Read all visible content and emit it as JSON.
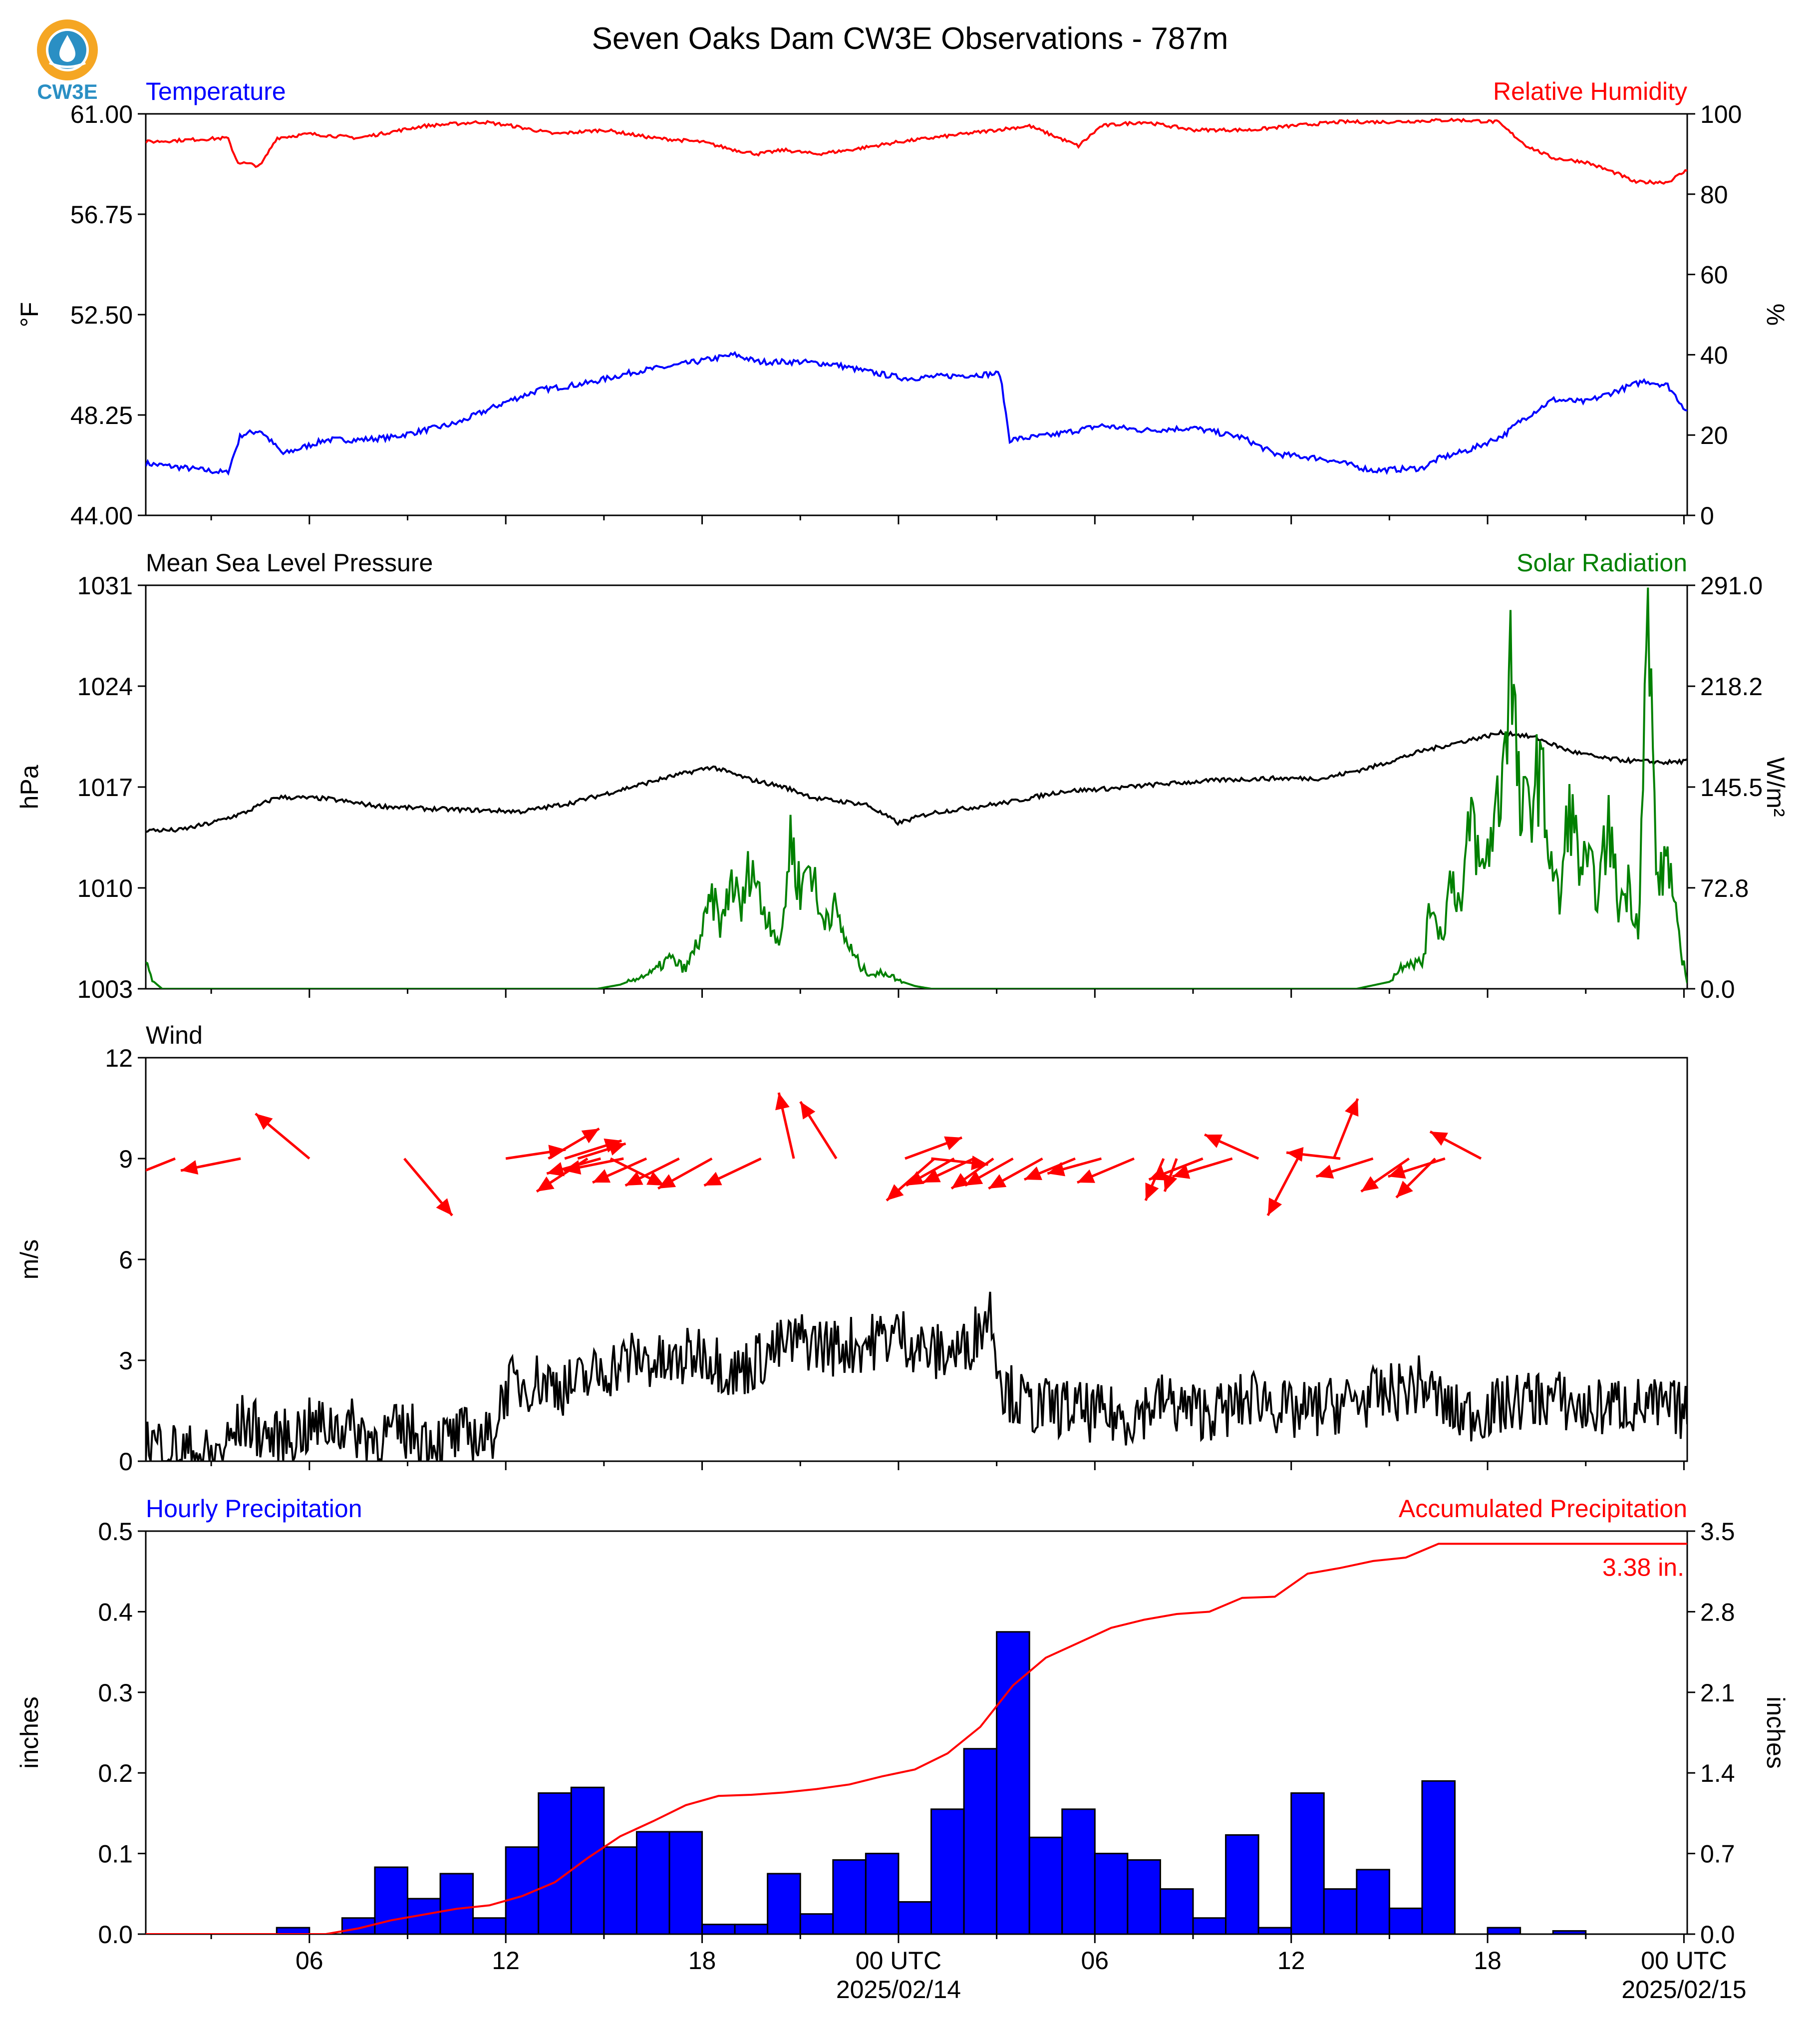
{
  "title": "Seven Oaks Dam CW3E Observations - 787m",
  "logo": {
    "text": "CW3E",
    "colors": {
      "ring": "#f5a623",
      "drop": "#2a8fc4",
      "text": "#2a8fc4"
    }
  },
  "colors": {
    "blue": "#0000ff",
    "red": "#ff0000",
    "green": "#008000",
    "black": "#000000"
  },
  "x_axis": {
    "ticks": [
      "06",
      "12",
      "18",
      "00 UTC",
      "06",
      "12",
      "18",
      "00 UTC"
    ],
    "dates": [
      "2025/02/14",
      "2025/02/15"
    ],
    "range_hours": [
      1,
      48.1
    ]
  },
  "chart_data": [
    {
      "type": "line",
      "left_title": "Temperature",
      "right_title": "Relative Humidity",
      "ylabel": "°F",
      "ylabel_right": "%",
      "ylim": [
        44.0,
        61.0
      ],
      "ylim_right": [
        0,
        100
      ],
      "yticks": [
        "44.00",
        "48.25",
        "52.50",
        "56.75",
        "61.00"
      ],
      "yticks_right": [
        "0",
        "20",
        "40",
        "60",
        "80",
        "100"
      ],
      "series": [
        {
          "axis": "left",
          "color": "#0000ff",
          "x": [
            1,
            3.5,
            3.9,
            4.5,
            5.2,
            6.5,
            7.5,
            8.5,
            10.5,
            12,
            13,
            14.5,
            16,
            17,
            18.2,
            19,
            19.7,
            21,
            22,
            23,
            24.2,
            25.5,
            27.1,
            27.4,
            28.7,
            30.2,
            31.5,
            33,
            34.5,
            35.5,
            37,
            38.5,
            40,
            40.5,
            41.5,
            42.5,
            43,
            44,
            45,
            46,
            46.8,
            47.5,
            48.1
          ],
          "values": [
            46.2,
            45.8,
            47.4,
            47.6,
            46.6,
            47.2,
            47.2,
            47.3,
            47.9,
            48.8,
            49.3,
            49.6,
            50.1,
            50.3,
            50.6,
            50.8,
            50.5,
            50.5,
            50.4,
            50.1,
            49.8,
            49.9,
            50.0,
            47.2,
            47.4,
            47.8,
            47.6,
            47.7,
            47.3,
            46.6,
            46.4,
            45.9,
            46.0,
            46.4,
            46.8,
            47.4,
            48.0,
            48.9,
            48.8,
            49.3,
            49.7,
            49.5,
            48.4
          ]
        },
        {
          "axis": "right",
          "color": "#ff0000",
          "x": [
            1,
            3.5,
            3.8,
            4.5,
            5,
            6,
            7.5,
            9.5,
            11.3,
            12.2,
            13.5,
            15,
            16.5,
            18,
            19,
            19.7,
            20.5,
            21.5,
            22.5,
            24,
            26,
            28,
            29.5,
            30.2,
            31.5,
            33,
            34.8,
            36,
            37.5,
            39,
            41,
            42.3,
            43.2,
            44,
            45,
            46,
            46.5,
            47.5,
            48.1
          ],
          "values": [
            93,
            94,
            88,
            87,
            94,
            95,
            94,
            97,
            98,
            97,
            95,
            96,
            94,
            93,
            91,
            90,
            91,
            90,
            91,
            93,
            95,
            97,
            92,
            97,
            98,
            96,
            96,
            97,
            98,
            98,
            98.5,
            98,
            92,
            89,
            88,
            85,
            83,
            83,
            86
          ]
        }
      ]
    },
    {
      "type": "line",
      "left_title": "Mean Sea Level Pressure",
      "right_title": "Solar Radiation",
      "ylabel": "hPa",
      "ylabel_right": "W/m²",
      "ylim": [
        1003,
        1031
      ],
      "ylim_right": [
        0.0,
        291.0
      ],
      "yticks": [
        "1003",
        "1010",
        "1017",
        "1024",
        "1031"
      ],
      "yticks_right": [
        "0.0",
        "72.8",
        "145.5",
        "218.2",
        "291.0"
      ],
      "series": [
        {
          "axis": "left",
          "color": "#000000",
          "x": [
            1,
            2,
            3,
            4,
            5,
            6.5,
            8,
            9.5,
            11,
            12.5,
            14,
            15.5,
            17,
            18.3,
            19.5,
            20.5,
            21.5,
            23,
            24,
            25,
            26,
            27.5,
            29,
            30.5,
            32,
            34,
            35.5,
            37,
            38.5,
            40,
            41.5,
            42.5,
            43.5,
            44.5,
            45.5,
            46.5,
            47.5,
            48.1
          ],
          "values": [
            1014.0,
            1014.0,
            1014.5,
            1015.2,
            1016.3,
            1016.2,
            1015.7,
            1015.5,
            1015.4,
            1015.3,
            1015.9,
            1016.8,
            1017.7,
            1018.4,
            1017.5,
            1017.0,
            1016.2,
            1015.8,
            1014.5,
            1015.2,
            1015.5,
            1016.0,
            1016.7,
            1016.9,
            1017.2,
            1017.5,
            1017.6,
            1017.6,
            1018.4,
            1019.5,
            1020.3,
            1020.8,
            1020.4,
            1019.5,
            1019.0,
            1018.8,
            1018.7,
            1018.8
          ],
          "raw": true
        },
        {
          "axis": "right",
          "color": "#008000",
          "x": [
            1,
            1.2,
            1.5,
            14.8,
            15.5,
            16.5,
            17.0,
            17.5,
            17.8,
            18.0,
            18.3,
            18.6,
            18.9,
            19.2,
            19.5,
            19.8,
            20.1,
            20.4,
            20.7,
            21.0,
            21.3,
            21.6,
            22.0,
            22.3,
            22.6,
            22.9,
            23.3,
            23.6,
            24.0,
            24.5,
            25,
            29,
            38,
            39.0,
            39.5,
            40.0,
            40.3,
            40.6,
            40.9,
            41.2,
            41.5,
            41.8,
            42.1,
            42.4,
            42.7,
            43.0,
            43.3,
            43.6,
            43.9,
            44.2,
            44.5,
            44.8,
            45.1,
            45.4,
            45.7,
            46.0,
            46.3,
            46.6,
            46.9,
            47.2,
            47.5,
            47.8,
            48.1
          ],
          "values": [
            18,
            6,
            0,
            0,
            3,
            12,
            22,
            14,
            30,
            40,
            65,
            45,
            80,
            55,
            95,
            60,
            50,
            30,
            110,
            70,
            95,
            50,
            60,
            40,
            25,
            14,
            10,
            12,
            6,
            2,
            0,
            0,
            0,
            5,
            20,
            18,
            65,
            35,
            85,
            55,
            130,
            80,
            110,
            145,
            240,
            120,
            135,
            160,
            100,
            60,
            135,
            90,
            85,
            70,
            120,
            60,
            75,
            45,
            265,
            70,
            100,
            40,
            5
          ],
          "raw": true
        }
      ]
    },
    {
      "type": "line",
      "left_title": "Wind",
      "ylabel": "m/s",
      "ylim": [
        0,
        12
      ],
      "yticks": [
        "0",
        "3",
        "6",
        "9",
        "12"
      ],
      "series": [
        {
          "axis": "left",
          "color": "#000000",
          "name_hidden": true,
          "x": [
            1,
            2,
            3,
            3.5,
            4,
            5,
            6,
            7,
            8,
            9,
            10,
            11,
            11.5,
            12,
            13,
            14,
            15,
            16,
            17,
            18,
            19,
            20,
            21,
            22,
            23,
            24,
            25,
            26,
            26.8,
            27.2,
            28,
            29,
            30,
            31,
            32,
            33,
            34,
            35,
            36,
            37,
            38,
            39,
            40,
            41,
            42,
            43,
            44,
            45,
            46,
            47,
            48.1
          ],
          "values": [
            0.6,
            0.3,
            0.1,
            0.5,
            1.2,
            0.6,
            1.0,
            1.1,
            0.7,
            0.9,
            0.6,
            0.8,
            0.6,
            2.2,
            2.4,
            2.2,
            2.7,
            3.1,
            2.8,
            3.3,
            2.6,
            3.2,
            3.6,
            3.4,
            3.5,
            3.8,
            3.2,
            3.3,
            4.5,
            2.2,
            1.6,
            1.6,
            1.4,
            1.3,
            1.8,
            1.5,
            1.5,
            2.0,
            1.4,
            1.6,
            1.8,
            2.0,
            2.3,
            1.4,
            1.5,
            1.8,
            1.9,
            1.5,
            1.7,
            1.6,
            1.5
          ]
        }
      ],
      "arrows": {
        "color": "#ff0000",
        "scale_ms": 1,
        "items": [
          {
            "x": 1.9,
            "u": -2.0,
            "v": -0.8
          },
          {
            "x": 3.9,
            "u": -2.0,
            "v": -0.4
          },
          {
            "x": 6.0,
            "u": -1.8,
            "v": 1.5
          },
          {
            "x": 8.9,
            "u": 1.6,
            "v": -1.9
          },
          {
            "x": 12.0,
            "u": 2.0,
            "v": 0.3
          },
          {
            "x": 13.3,
            "u": 1.7,
            "v": 1.0
          },
          {
            "x": 13.8,
            "u": 1.9,
            "v": 0.6
          },
          {
            "x": 14.2,
            "u": 1.6,
            "v": 0.5
          },
          {
            "x": 14.5,
            "u": -1.7,
            "v": -1.1
          },
          {
            "x": 14.9,
            "u": -1.8,
            "v": -0.5
          },
          {
            "x": 15.2,
            "u": 1.8,
            "v": -0.9
          },
          {
            "x": 15.6,
            "u": -2.0,
            "v": -0.4
          },
          {
            "x": 16.3,
            "u": -1.8,
            "v": -0.8
          },
          {
            "x": 17.3,
            "u": -1.8,
            "v": -0.9
          },
          {
            "x": 18.3,
            "u": -1.8,
            "v": -1.0
          },
          {
            "x": 19.8,
            "u": -1.9,
            "v": -0.9
          },
          {
            "x": 20.8,
            "u": -0.5,
            "v": 2.2
          },
          {
            "x": 22.1,
            "u": -1.2,
            "v": 1.9
          },
          {
            "x": 24.2,
            "u": 1.9,
            "v": 0.7
          },
          {
            "x": 25.0,
            "u": 1.9,
            "v": -0.2
          },
          {
            "x": 25.1,
            "u": -1.6,
            "v": -1.4
          },
          {
            "x": 25.7,
            "u": -1.6,
            "v": -0.9
          },
          {
            "x": 26.3,
            "u": -1.7,
            "v": -0.8
          },
          {
            "x": 26.9,
            "u": -1.4,
            "v": -1.0
          },
          {
            "x": 27.5,
            "u": -1.6,
            "v": -0.9
          },
          {
            "x": 28.4,
            "u": -1.8,
            "v": -1.0
          },
          {
            "x": 29.4,
            "u": -1.7,
            "v": -0.7
          },
          {
            "x": 30.2,
            "u": -1.8,
            "v": -0.5
          },
          {
            "x": 31.2,
            "u": -1.9,
            "v": -0.8
          },
          {
            "x": 32.1,
            "u": -0.6,
            "v": -1.4
          },
          {
            "x": 32.5,
            "u": -0.4,
            "v": -1.1
          },
          {
            "x": 33.3,
            "u": -1.8,
            "v": -0.7
          },
          {
            "x": 34.2,
            "u": -2.0,
            "v": -0.6
          },
          {
            "x": 35.0,
            "u": -1.8,
            "v": 0.8
          },
          {
            "x": 36.2,
            "u": -1.0,
            "v": -1.9
          },
          {
            "x": 37.3,
            "u": 0.8,
            "v": 2.0
          },
          {
            "x": 37.5,
            "u": -1.8,
            "v": 0.2
          },
          {
            "x": 38.5,
            "u": -1.9,
            "v": -0.6
          },
          {
            "x": 39.6,
            "u": -1.6,
            "v": -1.1
          },
          {
            "x": 40.4,
            "u": -1.3,
            "v": -1.3
          },
          {
            "x": 40.7,
            "u": -1.9,
            "v": -0.6
          },
          {
            "x": 41.8,
            "u": -1.7,
            "v": 0.9
          }
        ]
      }
    },
    {
      "type": "bar",
      "left_title": "Hourly Precipitation",
      "right_title": "Accumulated Precipitation",
      "ylabel": "inches",
      "ylabel_right": "inches",
      "ylim": [
        0.0,
        0.5
      ],
      "ylim_right": [
        0.0,
        3.5
      ],
      "yticks": [
        "0.0",
        "0.1",
        "0.2",
        "0.3",
        "0.4",
        "0.5"
      ],
      "yticks_right": [
        "0.0",
        "0.7",
        "1.4",
        "2.1",
        "2.8",
        "3.5"
      ],
      "bar_color": "#0000ff",
      "bars": {
        "hours": [
          5,
          6,
          7,
          8,
          9,
          10,
          11,
          12,
          13,
          14,
          15,
          16,
          17,
          18,
          19,
          20,
          21,
          22,
          23,
          24,
          25,
          26,
          27,
          28,
          29,
          30,
          31,
          32,
          33,
          34,
          35,
          36,
          37,
          38,
          39,
          40,
          41,
          42,
          43,
          44,
          45,
          46,
          47
        ],
        "values": [
          0.008,
          0.0,
          0.02,
          0.083,
          0.044,
          0.075,
          0.02,
          0.108,
          0.175,
          0.182,
          0.108,
          0.127,
          0.127,
          0.012,
          0.012,
          0.075,
          0.025,
          0.092,
          0.1,
          0.04,
          0.155,
          0.23,
          0.375,
          0.12,
          0.155,
          0.1,
          0.092,
          0.056,
          0.02,
          0.123,
          0.008,
          0.175,
          0.056,
          0.08,
          0.032,
          0.19,
          0.0,
          0.008,
          0.0,
          0.004,
          0.0,
          0.0,
          0.0
        ]
      },
      "accumulated": {
        "color": "#ff0000",
        "x": [
          1,
          6.5,
          7.5,
          8.5,
          9.5,
          10.5,
          11.5,
          12.5,
          13.5,
          14.5,
          15.5,
          16.5,
          17.5,
          18.5,
          19.5,
          20.5,
          21.5,
          22.5,
          23.5,
          24.5,
          25.5,
          26.5,
          27.5,
          28.5,
          29.5,
          30.5,
          31.5,
          32.5,
          33.5,
          34.5,
          35.5,
          36.5,
          37.5,
          38.5,
          39.5,
          40.5,
          41.5,
          42.5,
          48.1
        ],
        "values": [
          0.0,
          0.0,
          0.05,
          0.12,
          0.17,
          0.22,
          0.25,
          0.33,
          0.45,
          0.66,
          0.85,
          0.98,
          1.12,
          1.2,
          1.21,
          1.23,
          1.26,
          1.3,
          1.37,
          1.43,
          1.57,
          1.8,
          2.16,
          2.4,
          2.53,
          2.66,
          2.73,
          2.78,
          2.8,
          2.92,
          2.93,
          3.13,
          3.18,
          3.24,
          3.27,
          3.39,
          3.39,
          3.39,
          3.39
        ]
      },
      "total_label": "3.38 in."
    }
  ]
}
